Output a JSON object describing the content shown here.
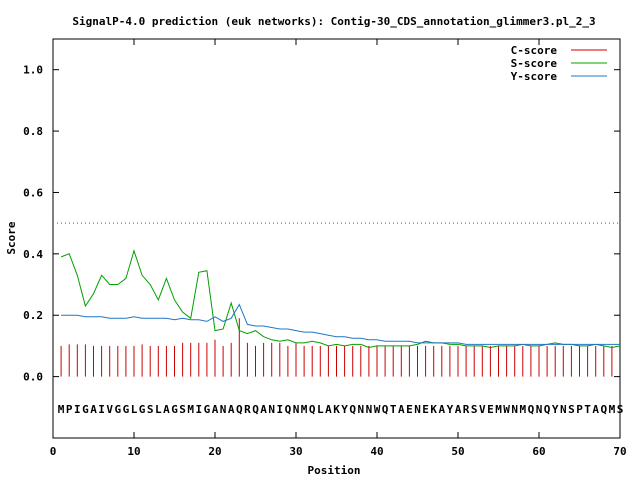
{
  "chart_data": {
    "type": "line",
    "title": "SignalP-4.0 prediction (euk networks): Contig-30_CDS_annotation_glimmer3.pl_2_3",
    "xlabel": "Position",
    "ylabel": "Score",
    "xlim": [
      0,
      70
    ],
    "ylim": [
      -0.2,
      1.1
    ],
    "x_ticks": [
      "0",
      "10",
      "20",
      "30",
      "40",
      "50",
      "60",
      "70"
    ],
    "y_ticks": [
      "0.0",
      "0.2",
      "0.4",
      "0.6",
      "0.8",
      "1.0"
    ],
    "x_tick_values": [
      0,
      10,
      20,
      30,
      40,
      50,
      60,
      70
    ],
    "y_tick_values": [
      0.0,
      0.2,
      0.4,
      0.6,
      0.8,
      1.0
    ],
    "threshold": 0.5,
    "grid": false,
    "legend_position": "top-right",
    "sequence": "MPIGAIVGGLGSLAGSMIGANAQRQANIQNMQLAKYQNNWQTAENEKAYARSVEMWNMQNQYNSPTAQMS",
    "series": [
      {
        "name": "C-score",
        "color": "#cc0000",
        "style": "impulses",
        "x": [
          1,
          2,
          3,
          4,
          5,
          6,
          7,
          8,
          9,
          10,
          11,
          12,
          13,
          14,
          15,
          16,
          17,
          18,
          19,
          20,
          21,
          22,
          23,
          24,
          25,
          26,
          27,
          28,
          29,
          30,
          31,
          32,
          33,
          34,
          35,
          36,
          37,
          38,
          39,
          40,
          41,
          42,
          43,
          44,
          45,
          46,
          47,
          48,
          49,
          50,
          51,
          52,
          53,
          54,
          55,
          56,
          57,
          58,
          59,
          60,
          61,
          62,
          63,
          64,
          65,
          66,
          67,
          68,
          69
        ],
        "values": [
          0.1,
          0.105,
          0.105,
          0.105,
          0.1,
          0.1,
          0.1,
          0.1,
          0.1,
          0.1,
          0.105,
          0.1,
          0.1,
          0.1,
          0.1,
          0.11,
          0.11,
          0.11,
          0.11,
          0.12,
          0.1,
          0.11,
          0.19,
          0.11,
          0.1,
          0.11,
          0.11,
          0.11,
          0.1,
          0.11,
          0.1,
          0.1,
          0.1,
          0.1,
          0.1,
          0.1,
          0.1,
          0.1,
          0.1,
          0.1,
          0.1,
          0.1,
          0.1,
          0.1,
          0.1,
          0.1,
          0.1,
          0.1,
          0.1,
          0.1,
          0.1,
          0.1,
          0.1,
          0.1,
          0.1,
          0.1,
          0.1,
          0.1,
          0.1,
          0.1,
          0.1,
          0.1,
          0.1,
          0.1,
          0.1,
          0.1,
          0.1,
          0.1,
          0.1
        ]
      },
      {
        "name": "S-score",
        "color": "#00a000",
        "style": "line",
        "x": [
          1,
          2,
          3,
          4,
          5,
          6,
          7,
          8,
          9,
          10,
          11,
          12,
          13,
          14,
          15,
          16,
          17,
          18,
          19,
          20,
          21,
          22,
          23,
          24,
          25,
          26,
          27,
          28,
          29,
          30,
          31,
          32,
          33,
          34,
          35,
          36,
          37,
          38,
          39,
          40,
          41,
          42,
          43,
          44,
          45,
          46,
          47,
          48,
          49,
          50,
          51,
          52,
          53,
          54,
          55,
          56,
          57,
          58,
          59,
          60,
          61,
          62,
          63,
          64,
          65,
          66,
          67,
          68,
          69,
          70
        ],
        "values": [
          0.39,
          0.4,
          0.33,
          0.23,
          0.27,
          0.33,
          0.3,
          0.3,
          0.32,
          0.41,
          0.33,
          0.3,
          0.25,
          0.32,
          0.25,
          0.21,
          0.19,
          0.34,
          0.345,
          0.15,
          0.155,
          0.24,
          0.15,
          0.14,
          0.15,
          0.13,
          0.12,
          0.115,
          0.12,
          0.11,
          0.11,
          0.115,
          0.11,
          0.1,
          0.105,
          0.1,
          0.105,
          0.105,
          0.095,
          0.1,
          0.1,
          0.1,
          0.1,
          0.1,
          0.105,
          0.115,
          0.11,
          0.11,
          0.105,
          0.105,
          0.1,
          0.1,
          0.1,
          0.095,
          0.1,
          0.1,
          0.1,
          0.105,
          0.1,
          0.1,
          0.105,
          0.11,
          0.105,
          0.105,
          0.1,
          0.1,
          0.105,
          0.1,
          0.095,
          0.1
        ]
      },
      {
        "name": "Y-score",
        "color": "#1f77c8",
        "style": "line",
        "x": [
          1,
          2,
          3,
          4,
          5,
          6,
          7,
          8,
          9,
          10,
          11,
          12,
          13,
          14,
          15,
          16,
          17,
          18,
          19,
          20,
          21,
          22,
          23,
          24,
          25,
          26,
          27,
          28,
          29,
          30,
          31,
          32,
          33,
          34,
          35,
          36,
          37,
          38,
          39,
          40,
          41,
          42,
          43,
          44,
          45,
          46,
          47,
          48,
          49,
          50,
          51,
          52,
          53,
          54,
          55,
          56,
          57,
          58,
          59,
          60,
          61,
          62,
          63,
          64,
          65,
          66,
          67,
          68,
          69,
          70
        ],
        "values": [
          0.2,
          0.2,
          0.2,
          0.195,
          0.195,
          0.195,
          0.19,
          0.19,
          0.19,
          0.195,
          0.19,
          0.19,
          0.19,
          0.19,
          0.185,
          0.19,
          0.185,
          0.185,
          0.18,
          0.195,
          0.18,
          0.19,
          0.235,
          0.17,
          0.165,
          0.165,
          0.16,
          0.155,
          0.155,
          0.15,
          0.145,
          0.145,
          0.14,
          0.135,
          0.13,
          0.13,
          0.125,
          0.125,
          0.12,
          0.12,
          0.115,
          0.115,
          0.115,
          0.115,
          0.11,
          0.11,
          0.11,
          0.11,
          0.11,
          0.11,
          0.105,
          0.105,
          0.105,
          0.105,
          0.105,
          0.105,
          0.105,
          0.105,
          0.105,
          0.105,
          0.105,
          0.105,
          0.105,
          0.105,
          0.105,
          0.105,
          0.105,
          0.105,
          0.105,
          0.105
        ]
      }
    ]
  }
}
